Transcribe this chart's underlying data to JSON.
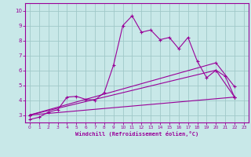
{
  "xlabel": "Windchill (Refroidissement éolien,°C)",
  "background_color": "#c8e8e8",
  "line_color": "#990099",
  "grid_color": "#a0c8c8",
  "xlim": [
    -0.5,
    23.5
  ],
  "ylim": [
    2.5,
    10.5
  ],
  "xticks": [
    0,
    1,
    2,
    3,
    4,
    5,
    6,
    7,
    8,
    9,
    10,
    11,
    12,
    13,
    14,
    15,
    16,
    17,
    18,
    19,
    20,
    21,
    22,
    23
  ],
  "yticks": [
    3,
    4,
    5,
    6,
    7,
    8,
    9,
    10
  ],
  "lines": [
    {
      "x": [
        0,
        1,
        2,
        3,
        4,
        5,
        6,
        7,
        8,
        9,
        10,
        11,
        12,
        13,
        14,
        15,
        16,
        17,
        18,
        19,
        20,
        21,
        22
      ],
      "y": [
        2.7,
        2.85,
        3.2,
        3.35,
        4.2,
        4.25,
        4.05,
        4.0,
        4.5,
        6.35,
        9.0,
        9.65,
        8.55,
        8.7,
        8.05,
        8.2,
        7.45,
        8.2,
        6.6,
        5.5,
        6.0,
        5.6,
        4.2
      ]
    },
    {
      "x": [
        0,
        20,
        22
      ],
      "y": [
        3.0,
        6.5,
        4.9
      ]
    },
    {
      "x": [
        0,
        20,
        22
      ],
      "y": [
        3.0,
        6.0,
        4.2
      ]
    },
    {
      "x": [
        0,
        22
      ],
      "y": [
        3.0,
        4.2
      ]
    }
  ]
}
